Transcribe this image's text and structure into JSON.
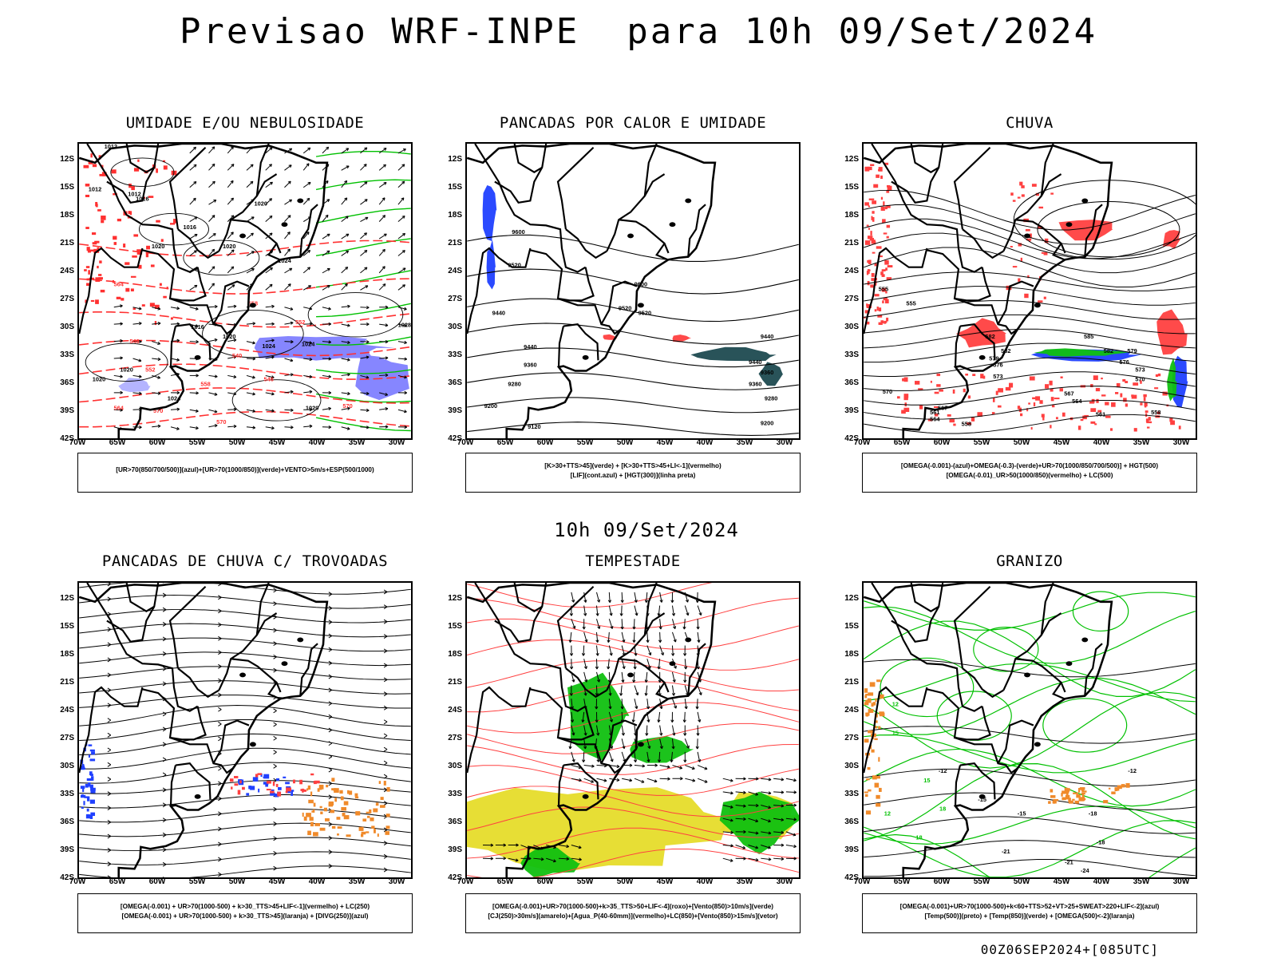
{
  "title": "Previsao WRF-INPE  para 10h 09/Set/2024",
  "mid_title": "10h 09/Set/2024",
  "footer": "00Z06SEP2024+[085UTC]",
  "axes": {
    "lat_ticks": [
      "12S",
      "15S",
      "18S",
      "21S",
      "24S",
      "27S",
      "30S",
      "33S",
      "36S",
      "39S",
      "42S"
    ],
    "lon_ticks": [
      "70W",
      "65W",
      "60W",
      "55W",
      "50W",
      "45W",
      "40W",
      "35W",
      "30W"
    ]
  },
  "colors": {
    "humidity_upper": "#8080ff",
    "humidity_lower": "#00c000",
    "thickness_contour": "#ff3030",
    "hgt_contour": "#000000",
    "shaded_red": "#ff4040",
    "shaded_dark": "#1e4a50",
    "shaded_yellow": "#e6dc2a",
    "shaded_orange": "#f08a2a",
    "shaded_blue": "#2040ff",
    "shaded_green": "#10c010"
  },
  "panels": [
    {
      "title": "UMIDADE E/OU NEBULOSIDADE",
      "legend": [
        "[UR>70(850/700/500)](azul)+[UR>70(1000/850)](verde)+VENTO>5m/s+ESP(500/1000)"
      ],
      "contour_labels": [
        "1012",
        "1012",
        "1016",
        "1020",
        "1020",
        "1020",
        "1012",
        "1016",
        "1024",
        "1028",
        "1016",
        "1020",
        "1024",
        "1024",
        "1020",
        "1020",
        "1024",
        "1020",
        "570",
        "570",
        "564",
        "558",
        "552",
        "546",
        "540",
        "546",
        "552",
        "558",
        "564",
        "570"
      ]
    },
    {
      "title": "PANCADAS POR CALOR E UMIDADE",
      "legend": [
        "[K>30+TTS>45](verde) + [K>30+TTS>45+LI<-1](vermelho)",
        "[LIF](cont.azul) + [HGT(300)](linha preta)"
      ],
      "contour_labels": [
        "9600",
        "9520",
        "9600",
        "9520",
        "9440",
        "9520",
        "9440",
        "9360",
        "9440",
        "9360",
        "9280",
        "9280",
        "9200",
        "9200",
        "9120",
        "9120",
        "9360",
        "9440"
      ]
    },
    {
      "title": "CHUVA",
      "legend": [
        "[OMEGA(-0.001)-(azul)+OMEGA(-0.3)-(verde)+UR>70(1000/850/700/500)] + HGT(500)",
        "[OMEGA(-0.01)_UR>50(1000/850)(vermelho) + LC(500)"
      ],
      "contour_labels": [
        "582",
        "582",
        "579",
        "576",
        "573",
        "570",
        "567",
        "564",
        "561",
        "558",
        "555",
        "585",
        "582",
        "579",
        "576",
        "573",
        "570",
        "567",
        "564",
        "561",
        "558",
        "555"
      ]
    },
    {
      "title": "PANCADAS DE CHUVA C/ TROVOADAS",
      "legend": [
        "[OMEGA(-0.001) + UR>70(1000-500) + k>30_TTS>45+LIF<-1](vermelho) + LC(250)",
        "[OMEGA(-0.001) + UR>70(1000-500) + k>30_TTS>45](laranja) + [DIVG(250)](azul)"
      ]
    },
    {
      "title": "TEMPESTADE",
      "legend": [
        "[OMEGA(-0.001)+UR>70(1000-500)+k>35_TTS>50+LIF<-4](roxo)+[Vento(850)>10m/s](verde)",
        "[CJ(250)>30m/s](amarelo)+[Agua_P(40-60mm)](vermelho)+LC(850)+[Vento(850)>15m/s](vetor)"
      ]
    },
    {
      "title": "GRANIZO",
      "legend": [
        "[OMEGA(-0.001)+UR>70(1000-500)+k<60+TTS>52+VT>25+SWEAT>220+LIF<-2](azul)",
        "[Temp(500)](preto) + [Temp(850)](verde) + [OMEGA(500)<-2](laranja)"
      ],
      "contour_labels": [
        "-12",
        "-12",
        "-15",
        "-15",
        "-18",
        "-18",
        "-21",
        "-21",
        "-24",
        "12",
        "15",
        "18",
        "12",
        "15",
        "18"
      ]
    }
  ]
}
